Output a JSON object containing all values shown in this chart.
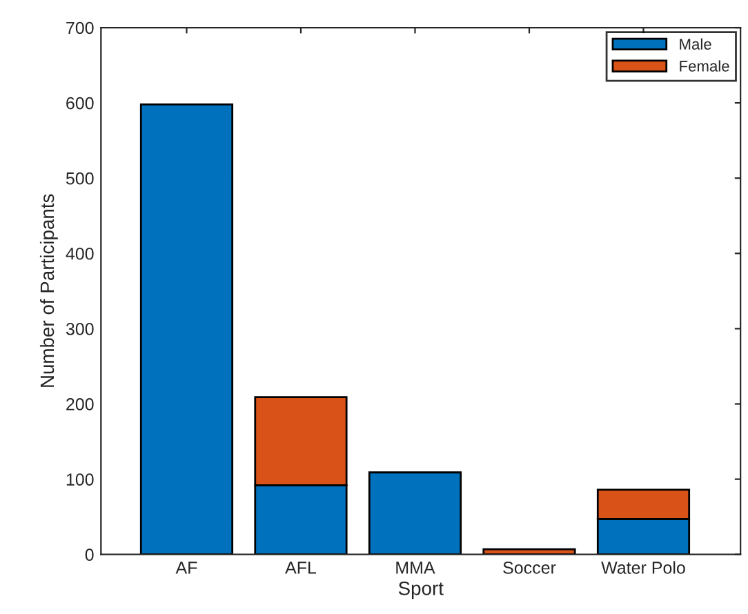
{
  "chart_data": {
    "type": "bar",
    "stacked": true,
    "xlabel": "Sport",
    "ylabel": "Number of Participants",
    "categories": [
      "AF",
      "AFL",
      "MMA",
      "Soccer",
      "Water Polo"
    ],
    "series": [
      {
        "name": "Male",
        "color": "#0072bd",
        "values": [
          598,
          92,
          109,
          null,
          47
        ]
      },
      {
        "name": "Female",
        "color": "#d95319",
        "values": [
          null,
          117,
          null,
          7,
          39
        ]
      }
    ],
    "ylim": [
      0,
      700
    ],
    "yticks": [
      0,
      100,
      200,
      300,
      400,
      500,
      600,
      700
    ],
    "grid": false,
    "legend": "top right"
  }
}
